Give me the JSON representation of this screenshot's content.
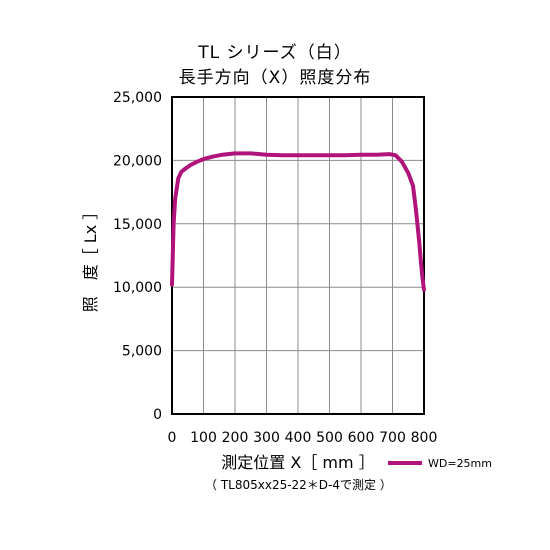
{
  "chart_data": {
    "type": "line",
    "title": "TL シリーズ（白）",
    "subtitle": "長手方向（X）照度分布",
    "xlabel": "測定位置 X［ mm ］",
    "ylabel": "照　度［ Lx ］",
    "note": "（ TL805xx25-22＊D-4で測定 ）",
    "xlim": [
      0,
      800
    ],
    "ylim": [
      0,
      25000
    ],
    "xticks": [
      0,
      100,
      200,
      300,
      400,
      500,
      600,
      700,
      800
    ],
    "xtick_labels": [
      "0",
      "100",
      "200",
      "300",
      "400",
      "500",
      "600",
      "700",
      "800"
    ],
    "yticks": [
      0,
      5000,
      10000,
      15000,
      20000,
      25000
    ],
    "ytick_labels": [
      "0",
      "5,000",
      "10,000",
      "15,000",
      "20,000",
      "25,000"
    ],
    "grid": true,
    "legend_position": "bottom-right",
    "series": [
      {
        "name": "WD=25mm",
        "color": "#b0137a",
        "x": [
          0,
          5,
          10,
          20,
          30,
          45,
          60,
          80,
          100,
          130,
          160,
          200,
          250,
          300,
          350,
          400,
          450,
          500,
          550,
          600,
          650,
          690,
          710,
          730,
          750,
          765,
          775,
          785,
          790,
          795,
          800
        ],
        "y": [
          10200,
          15000,
          17000,
          18600,
          19100,
          19400,
          19650,
          19900,
          20100,
          20300,
          20450,
          20550,
          20550,
          20450,
          20400,
          20400,
          20400,
          20400,
          20400,
          20450,
          20450,
          20500,
          20400,
          19900,
          19000,
          18000,
          16000,
          13500,
          12000,
          10800,
          9800
        ]
      }
    ]
  }
}
